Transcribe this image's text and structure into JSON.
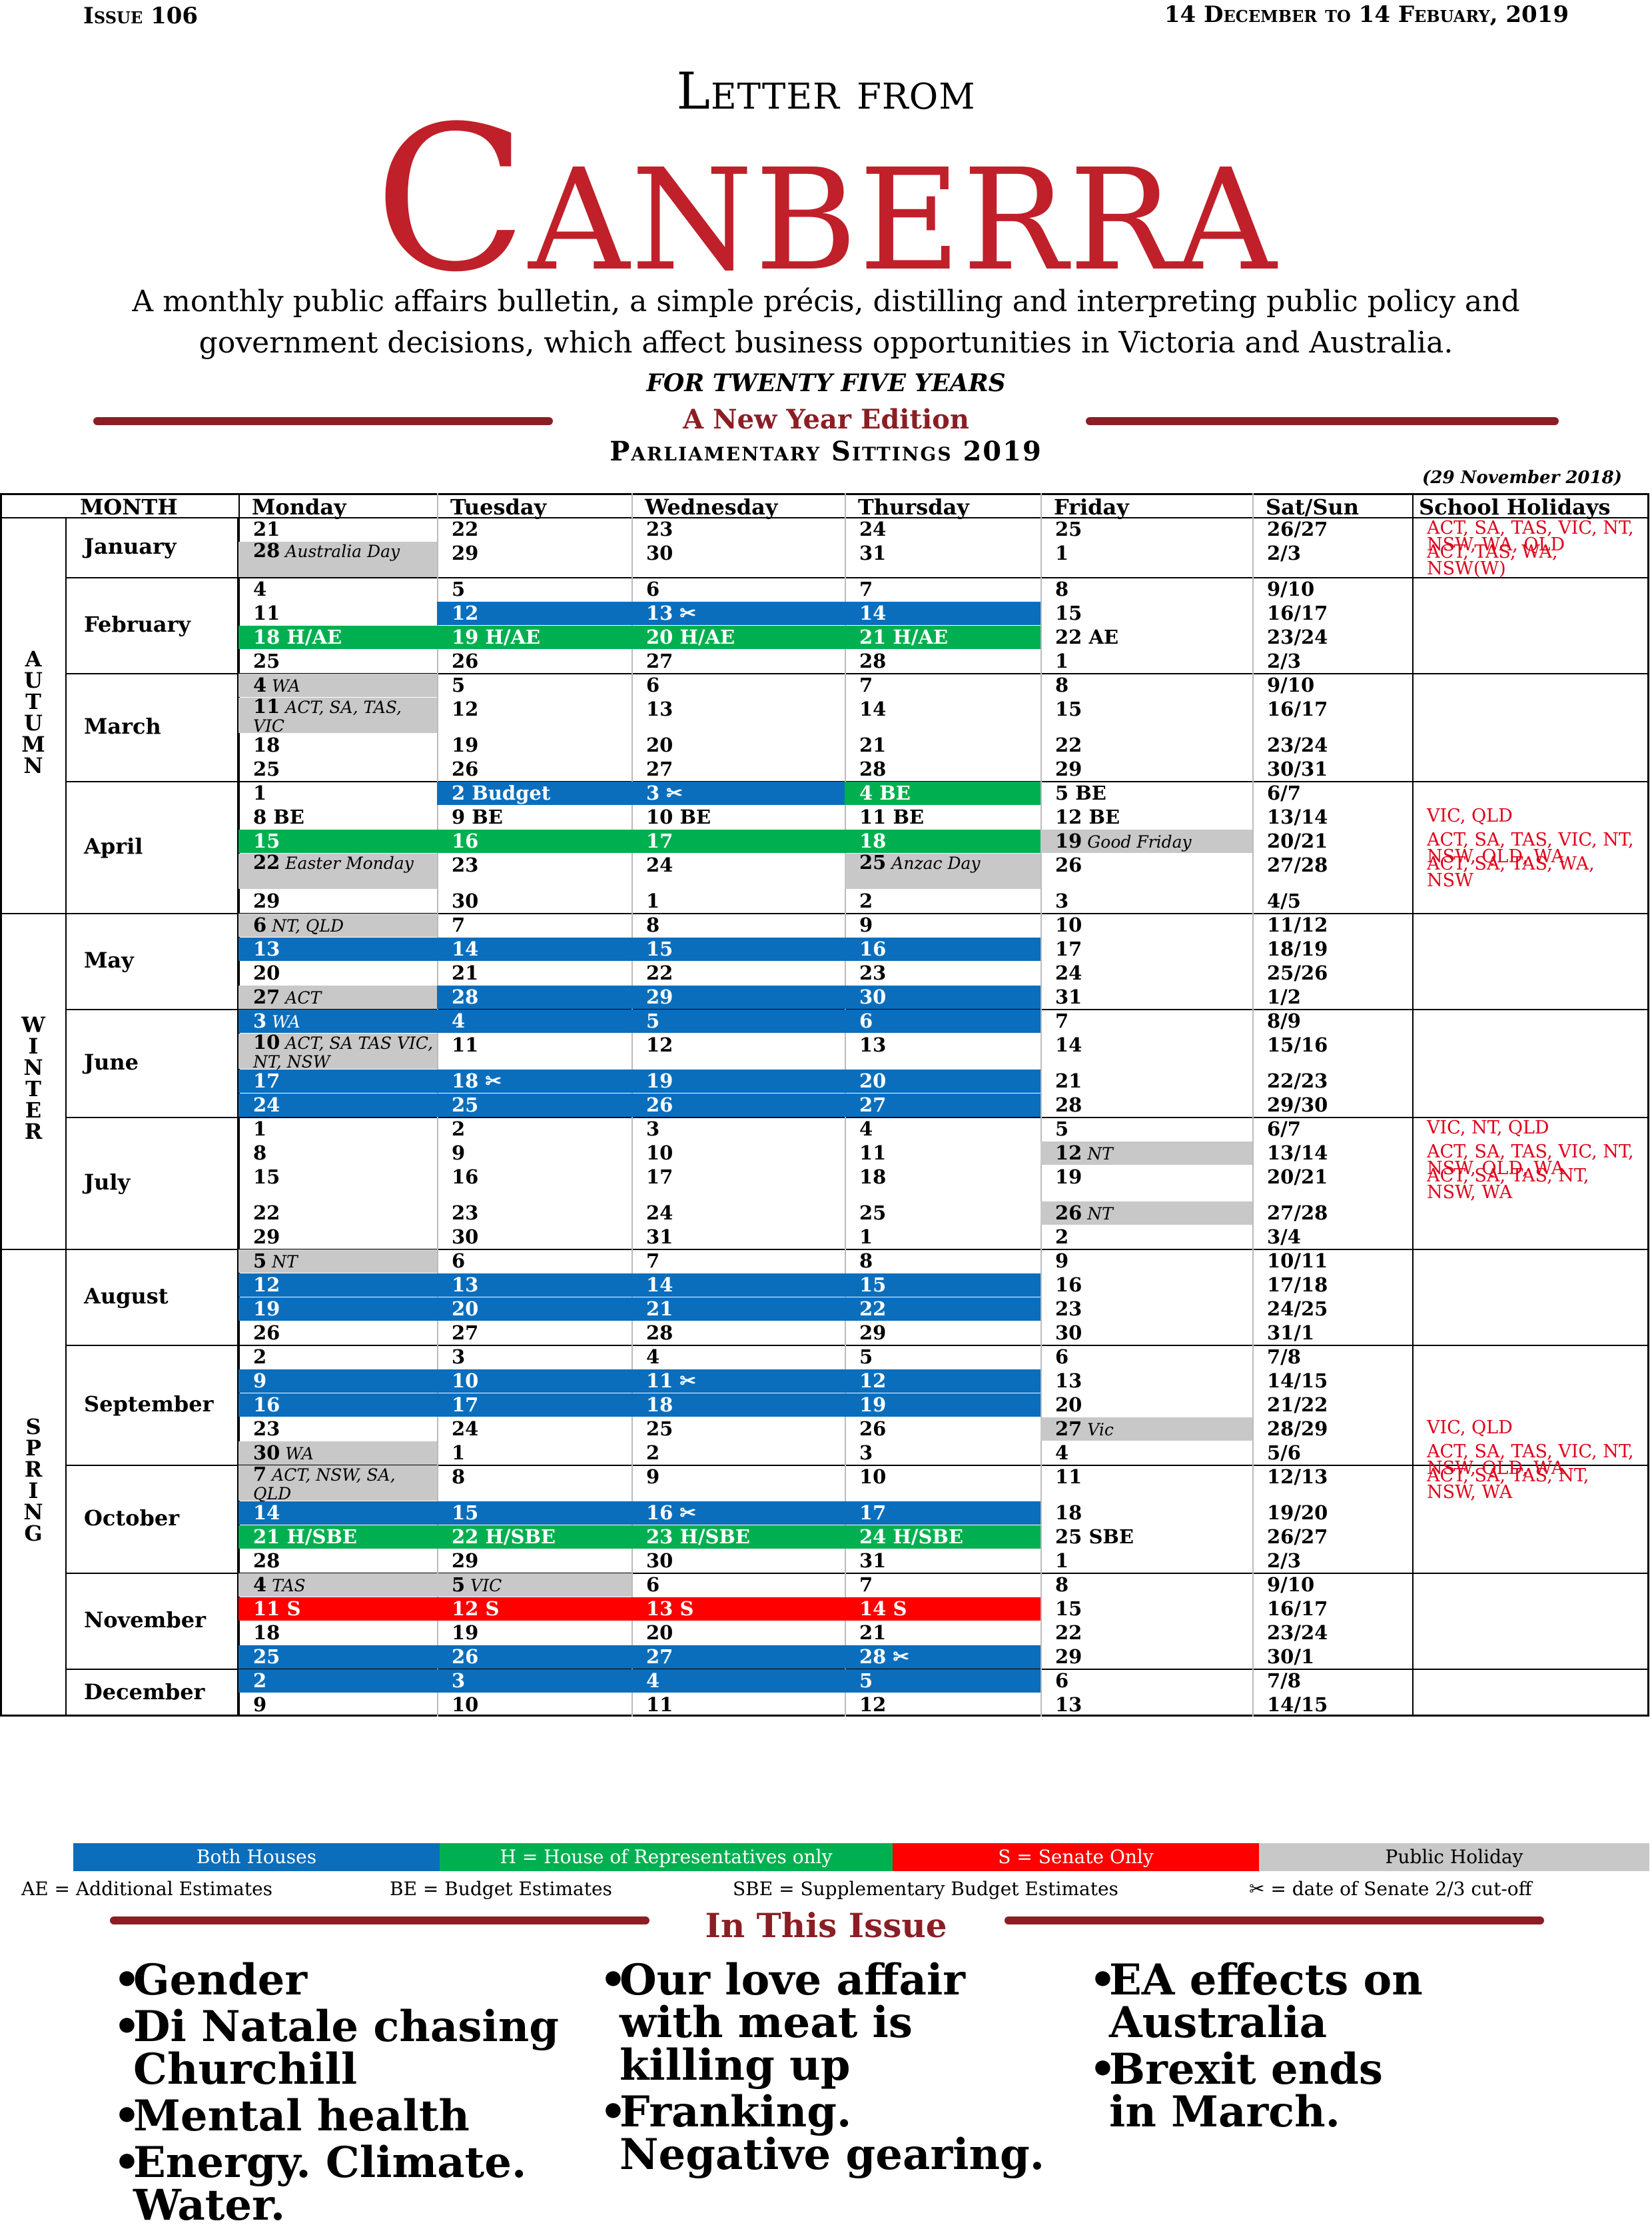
{
  "masthead": {
    "issue": "Issue 106",
    "dates": "14 December to 14 Febuary, 2019",
    "letter_from": "Letter from",
    "canberra": "Canberra",
    "description": "A monthly public affairs bulletin, a simple précis, distilling and interpreting public policy and government decisions, which affect business opportunities in Victoria and Australia.",
    "tagline": "FOR TWENTY FIVE YEARS",
    "edition": "A New Year Edition",
    "section_title": "Parliamentary Sittings 2019",
    "updated": "(29 November 2018)"
  },
  "colors": {
    "blue": "#0a6ebd",
    "green": "#00b050",
    "red": "#ff0000",
    "grey": "#c8c8c8",
    "brand": "#c0202a",
    "rule": "#8b1e24"
  },
  "calendar": {
    "headers": [
      "MONTH",
      "Monday",
      "Tuesday",
      "Wednesday",
      "Thursday",
      "Friday",
      "Sat/Sun",
      "School Holidays"
    ],
    "seasons": [
      {
        "name": "AUTUMN",
        "letters": "A U T U M N"
      },
      {
        "name": "WINTER",
        "letters": "W I N T E R"
      },
      {
        "name": "SPRING",
        "letters": "S P R I N G"
      }
    ],
    "rows": [
      {
        "m": "January",
        "c": [
          "21",
          "22",
          "23",
          "24",
          "25",
          "26/27"
        ],
        "h": "ACT, SA, TAS, VIC, NT, NSW, WA, QLD"
      },
      {
        "c": [
          "28 |Australia Day",
          "29",
          "30",
          "31",
          "1",
          "2/3"
        ],
        "h": "ACT, TAS, WA, NSW(W)",
        "k": [
          "g",
          "",
          "",
          "",
          "",
          ""
        ]
      },
      {
        "c": [
          "4",
          "5",
          "6",
          "7",
          "8",
          "9/10"
        ]
      },
      {
        "m": "February",
        "c": [
          "11",
          "12",
          "13 ✂",
          "14",
          "15",
          "16/17"
        ],
        "k": [
          "",
          "b",
          "b",
          "b",
          "",
          ""
        ]
      },
      {
        "c": [
          "18 H/AE",
          "19 H/AE",
          "20 H/AE",
          "21 H/AE",
          "22 AE",
          "23/24"
        ],
        "k": [
          "gr",
          "gr",
          "gr",
          "gr",
          "",
          ""
        ]
      },
      {
        "c": [
          "25",
          "26",
          "27",
          "28",
          "1",
          "2/3"
        ]
      },
      {
        "c": [
          "4 |WA",
          "5",
          "6",
          "7",
          "8",
          "9/10"
        ],
        "k": [
          "g",
          "",
          "",
          "",
          "",
          ""
        ]
      },
      {
        "m": "March",
        "c": [
          "11 |ACT, SA, TAS, VIC",
          "12",
          "13",
          "14",
          "15",
          "16/17"
        ],
        "k": [
          "g",
          "",
          "",
          "",
          "",
          ""
        ]
      },
      {
        "c": [
          "18",
          "19",
          "20",
          "21",
          "22",
          "23/24"
        ]
      },
      {
        "c": [
          "25",
          "26",
          "27",
          "28",
          "29",
          "30/31"
        ]
      },
      {
        "c": [
          "1",
          "2 Budget",
          "3 ✂",
          "4 BE",
          "5 BE",
          "6/7"
        ],
        "k": [
          "",
          "b",
          "b",
          "gr",
          "",
          ""
        ]
      },
      {
        "m": "April",
        "c": [
          "8 BE",
          "9 BE",
          "10 BE",
          "11 BE",
          "12 BE",
          "13/14"
        ],
        "h": "VIC, QLD"
      },
      {
        "c": [
          "15",
          "16",
          "17",
          "18",
          "19 |Good Friday",
          "20/21"
        ],
        "h": "ACT, SA, TAS, VIC, NT, NSW, QLD, WA",
        "k": [
          "gr",
          "gr",
          "gr",
          "gr",
          "g",
          ""
        ]
      },
      {
        "c": [
          "22 |Easter Monday",
          "23",
          "24",
          "25 |Anzac Day",
          "26",
          "27/28"
        ],
        "h": "ACT, SA, TAS, WA, NSW",
        "k": [
          "g",
          "",
          "",
          "g",
          "",
          ""
        ]
      },
      {
        "c": [
          "29",
          "30",
          "1",
          "2",
          "3",
          "4/5"
        ]
      },
      {
        "c": [
          "6 |NT, QLD",
          "7",
          "8",
          "9",
          "10",
          "11/12"
        ],
        "k": [
          "g",
          "",
          "",
          "",
          "",
          ""
        ]
      },
      {
        "m": "May",
        "c": [
          "13",
          "14",
          "15",
          "16",
          "17",
          "18/19"
        ],
        "k": [
          "b",
          "b",
          "b",
          "b",
          "",
          ""
        ]
      },
      {
        "c": [
          "20",
          "21",
          "22",
          "23",
          "24",
          "25/26"
        ]
      },
      {
        "c": [
          "27 |ACT",
          "28",
          "29",
          "30",
          "31",
          "1/2"
        ],
        "k": [
          "g",
          "b",
          "b",
          "b",
          "",
          ""
        ]
      },
      {
        "c": [
          "3 |WA",
          "4",
          "5",
          "6",
          "7",
          "8/9"
        ],
        "k": [
          "b",
          "b",
          "b",
          "b",
          "",
          ""
        ]
      },
      {
        "m": "June",
        "c": [
          "10 |ACT, SA TAS VIC, NT, NSW",
          "11",
          "12",
          "13",
          "14",
          "15/16"
        ],
        "k": [
          "g",
          "",
          "",
          "",
          "",
          ""
        ]
      },
      {
        "c": [
          "17",
          "18 ✂",
          "19",
          "20",
          "21",
          "22/23"
        ],
        "k": [
          "b",
          "b",
          "b",
          "b",
          "",
          ""
        ]
      },
      {
        "c": [
          "24",
          "25",
          "26",
          "27",
          "28",
          "29/30"
        ],
        "k": [
          "b",
          "b",
          "b",
          "b",
          "",
          ""
        ]
      },
      {
        "c": [
          "1",
          "2",
          "3",
          "4",
          "5",
          "6/7"
        ],
        "h": "VIC, NT, QLD"
      },
      {
        "c": [
          "8",
          "9",
          "10",
          "11",
          "12 |NT",
          "13/14"
        ],
        "h": "ACT, SA, TAS, VIC, NT, NSW, QLD, WA",
        "k": [
          "",
          "",
          "",
          "",
          "g",
          ""
        ]
      },
      {
        "m": "July",
        "c": [
          "15",
          "16",
          "17",
          "18",
          "19",
          "20/21"
        ],
        "h": "ACT, SA, TAS, NT, NSW, WA"
      },
      {
        "c": [
          "22",
          "23",
          "24",
          "25",
          "26 |NT",
          "27/28"
        ],
        "k": [
          "",
          "",
          "",
          "",
          "g",
          ""
        ]
      },
      {
        "c": [
          "29",
          "30",
          "31",
          "1",
          "2",
          "3/4"
        ]
      },
      {
        "c": [
          "5 |NT",
          "6",
          "7",
          "8",
          "9",
          "10/11"
        ],
        "k": [
          "g",
          "",
          "",
          "",
          "",
          ""
        ]
      },
      {
        "m": "August",
        "c": [
          "12",
          "13",
          "14",
          "15",
          "16",
          "17/18"
        ],
        "k": [
          "b",
          "b",
          "b",
          "b",
          "",
          ""
        ]
      },
      {
        "c": [
          "19",
          "20",
          "21",
          "22",
          "23",
          "24/25"
        ],
        "k": [
          "b",
          "b",
          "b",
          "b",
          "",
          ""
        ]
      },
      {
        "c": [
          "26",
          "27",
          "28",
          "29",
          "30",
          "31/1"
        ]
      },
      {
        "c": [
          "2",
          "3",
          "4",
          "5",
          "6",
          "7/8"
        ]
      },
      {
        "c": [
          "9",
          "10",
          "11 ✂",
          "12",
          "13",
          "14/15"
        ],
        "k": [
          "b",
          "b",
          "b",
          "b",
          "",
          ""
        ]
      },
      {
        "m": "September",
        "c": [
          "16",
          "17",
          "18",
          "19",
          "20",
          "21/22"
        ],
        "k": [
          "b",
          "b",
          "b",
          "b",
          "",
          ""
        ]
      },
      {
        "c": [
          "23",
          "24",
          "25",
          "26",
          "27 |Vic",
          "28/29"
        ],
        "h": "VIC, QLD",
        "k": [
          "",
          "",
          "",
          "",
          "g",
          ""
        ]
      },
      {
        "c": [
          "30 |WA",
          "1",
          "2",
          "3",
          "4",
          "5/6"
        ],
        "h": "ACT, SA, TAS, VIC, NT, NSW, QLD, WA",
        "k": [
          "g",
          "",
          "",
          "",
          "",
          ""
        ]
      },
      {
        "m": "October",
        "c": [
          "7 |ACT, NSW, SA, QLD",
          "8",
          "9",
          "10",
          "11",
          "12/13"
        ],
        "h": "ACT, SA, TAS, NT, NSW, WA",
        "k": [
          "g",
          "",
          "",
          "",
          "",
          ""
        ]
      },
      {
        "c": [
          "14",
          "15",
          "16 ✂",
          "17",
          "18",
          "19/20"
        ],
        "k": [
          "b",
          "b",
          "b",
          "b",
          "",
          ""
        ]
      },
      {
        "c": [
          "21 H/SBE",
          "22 H/SBE",
          "23 H/SBE",
          "24 H/SBE",
          "25  SBE",
          "26/27"
        ],
        "k": [
          "gr",
          "gr",
          "gr",
          "gr",
          "",
          ""
        ]
      },
      {
        "c": [
          "28",
          "29",
          "30",
          "31",
          "1",
          "2/3"
        ]
      },
      {
        "c": [
          "4 |TAS",
          "5 |VIC",
          "6",
          "7",
          "8",
          "9/10"
        ],
        "k": [
          "g",
          "g",
          "",
          "",
          "",
          ""
        ]
      },
      {
        "m": "November",
        "c": [
          "11 S",
          "12 S",
          "13 S",
          "14 S",
          "15",
          "16/17"
        ],
        "k": [
          "r",
          "r",
          "r",
          "r",
          "",
          ""
        ]
      },
      {
        "c": [
          "18",
          "19",
          "20",
          "21",
          "22",
          "23/24"
        ]
      },
      {
        "c": [
          "25",
          "26",
          "27",
          "28 ✂",
          "29",
          "30/1"
        ],
        "k": [
          "b",
          "b",
          "b",
          "b",
          "",
          ""
        ]
      },
      {
        "m": "December",
        "c": [
          "2",
          "3",
          "4",
          "5",
          "6",
          "7/8"
        ],
        "k": [
          "b",
          "b",
          "b",
          "b",
          "",
          ""
        ]
      },
      {
        "c": [
          "9",
          "10",
          "11",
          "12",
          "13",
          "14/15"
        ]
      }
    ]
  },
  "legend": {
    "both": "Both Houses",
    "house": "H = House of Representatives only",
    "senate": "S = Senate Only",
    "holiday": "Public Holiday",
    "ae": "AE = Additional Estimates",
    "be": "BE = Budget Estimates",
    "sbe": "SBE = Supplementary Budget Estimates",
    "cutoff": "✂  = date of Senate 2/3 cut-off"
  },
  "in_this_issue": {
    "title": "In This Issue",
    "col1": [
      [
        "Gender"
      ],
      [
        "Di Natale chasing",
        "Churchill"
      ],
      [
        "Mental health"
      ],
      [
        "Energy. Climate.",
        "Water."
      ]
    ],
    "col2": [
      [
        "Our love affair",
        "with meat is",
        "killing up"
      ],
      [
        "Franking.",
        "Negative gearing."
      ]
    ],
    "col3": [
      [
        "EA effects on",
        "Australia"
      ],
      [
        "Brexit ends",
        "in March."
      ]
    ]
  }
}
